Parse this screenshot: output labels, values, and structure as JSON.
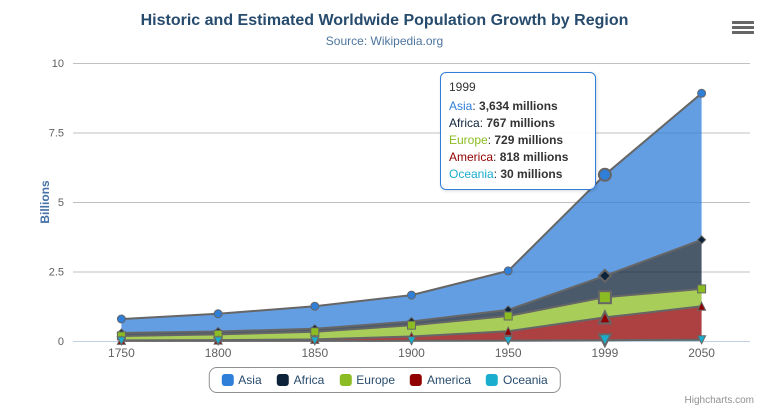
{
  "chart": {
    "title": "Historic and Estimated Worldwide Population Growth by Region",
    "subtitle": "Source: Wikipedia.org",
    "credits": "Highcharts.com",
    "icons": {
      "export_menu": "hamburger-icon"
    }
  },
  "chart_data": {
    "type": "area",
    "stacking": "normal",
    "title": "Historic and Estimated Worldwide Population Growth by Region",
    "subtitle": "Source: Wikipedia.org",
    "xlabel": "",
    "ylabel": "Billions",
    "ylim": [
      0,
      10
    ],
    "yticks": [
      0,
      2.5,
      5,
      7.5,
      10
    ],
    "grid": true,
    "legend_position": "bottom",
    "categories": [
      "1750",
      "1800",
      "1850",
      "1900",
      "1950",
      "1999",
      "2050"
    ],
    "values_unit": "millions",
    "series": [
      {
        "name": "Asia",
        "color": "#2f7ed8",
        "marker": "circle",
        "values": [
          502,
          635,
          809,
          947,
          1402,
          3634,
          5268
        ]
      },
      {
        "name": "Africa",
        "color": "#0d233a",
        "marker": "diamond",
        "values": [
          106,
          107,
          111,
          133,
          221,
          767,
          1766
        ]
      },
      {
        "name": "Europe",
        "color": "#8bbc21",
        "marker": "square",
        "values": [
          163,
          203,
          276,
          408,
          547,
          729,
          628
        ]
      },
      {
        "name": "America",
        "color": "#910000",
        "marker": "triangle",
        "values": [
          18,
          31,
          54,
          156,
          339,
          818,
          1201
        ]
      },
      {
        "name": "Oceania",
        "color": "#1aadce",
        "marker": "triangle-down",
        "values": [
          2,
          2,
          2,
          6,
          13,
          30,
          46
        ]
      }
    ],
    "stack_order_note": "first series renders on top of stack",
    "hover_category_index": 5
  },
  "tooltip": {
    "header": "1999",
    "border_color": "#2f7ed8",
    "rows": [
      {
        "name": "Asia",
        "color": "#2f7ed8",
        "value": "3,634 millions"
      },
      {
        "name": "Africa",
        "color": "#0d233a",
        "value": "767 millions"
      },
      {
        "name": "Europe",
        "color": "#8bbc21",
        "value": "729 millions"
      },
      {
        "name": "America",
        "color": "#910000",
        "value": "818 millions"
      },
      {
        "name": "Oceania",
        "color": "#1aadce",
        "value": "30 millions"
      }
    ]
  },
  "legend": {
    "items": [
      {
        "label": "Asia",
        "color": "#2f7ed8"
      },
      {
        "label": "Africa",
        "color": "#0d233a"
      },
      {
        "label": "Europe",
        "color": "#8bbc21"
      },
      {
        "label": "America",
        "color": "#910000"
      },
      {
        "label": "Oceania",
        "color": "#1aadce"
      }
    ]
  },
  "style_colors": {
    "title": "#274b6d",
    "subtitle": "#4d759e",
    "axis_labels": "#606060",
    "y_axis_title": "#4572A7",
    "gridline": "#C0C0C0",
    "axis_line": "#C0D0E0",
    "series_outline": "#666666",
    "legend_border": "#909090",
    "credits": "#909090"
  }
}
